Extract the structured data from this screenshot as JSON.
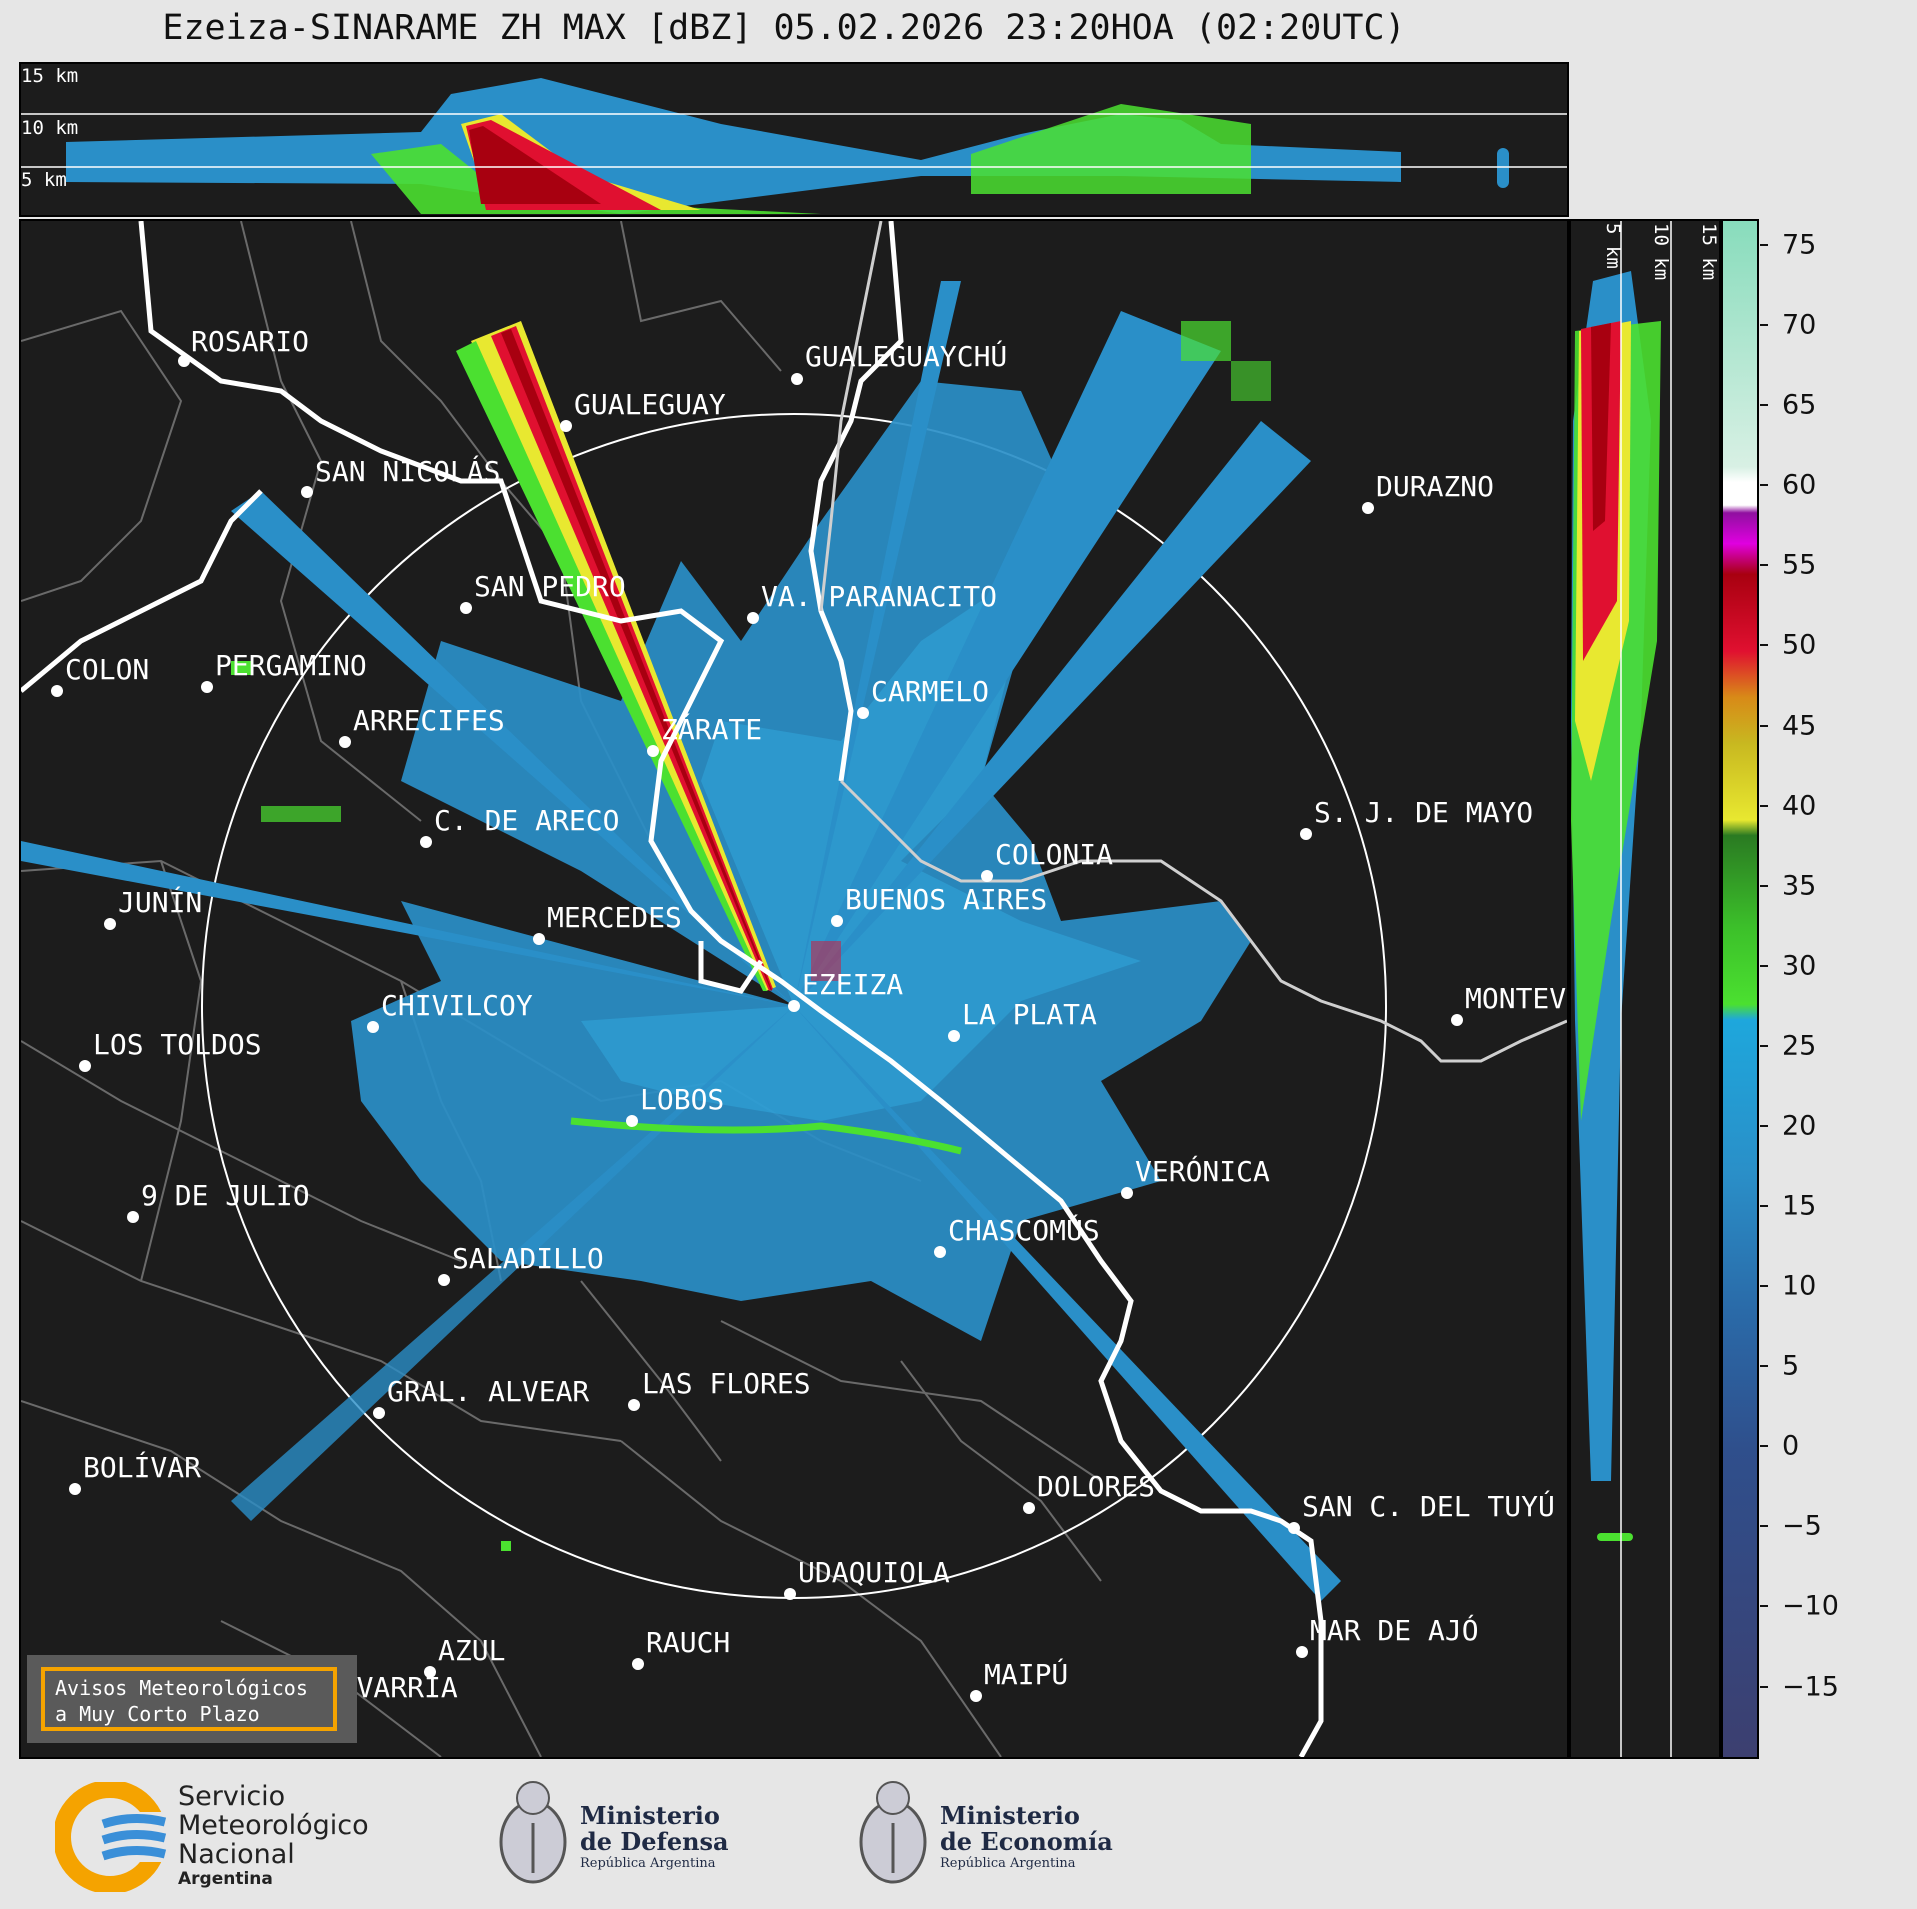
{
  "title": "Ezeiza-SINARAME ZH MAX [dBZ] 05.02.2026 23:20HOA (02:20UTC)",
  "top_cross_section": {
    "height_labels": [
      "15 km",
      "10 km",
      "5 km"
    ]
  },
  "side_cross_section": {
    "height_labels": [
      "5 km",
      "10 km",
      "15 km"
    ]
  },
  "colorbar": {
    "unit": "dBZ",
    "ticks": [
      "75",
      "70",
      "65",
      "60",
      "55",
      "50",
      "45",
      "40",
      "35",
      "30",
      "25",
      "20",
      "15",
      "10",
      "5",
      "0",
      "−5",
      "−10",
      "−15"
    ],
    "range": [
      -19.4,
      76.5
    ],
    "colors": {
      "low": "#3c3f70",
      "blue": "#2a8fc8",
      "cyan": "#1ea7dc",
      "green": "#4be030",
      "darkgreen": "#2a7a22",
      "yellow": "#e8e830",
      "orange": "#d88a18",
      "red": "#e01030",
      "darkred": "#a80010",
      "magenta": "#e000e0",
      "purple": "#9010a0",
      "white": "#ffffff",
      "mint": "#88dcbc"
    }
  },
  "cities": [
    {
      "name": "ROSARIO"
    },
    {
      "name": "GUALEGUAYCHÚ"
    },
    {
      "name": "GUALEGUAY"
    },
    {
      "name": "SAN NICOLÁS"
    },
    {
      "name": "DURAZNO"
    },
    {
      "name": "SAN PEDRO"
    },
    {
      "name": "VA. PARANACITO"
    },
    {
      "name": "COLON"
    },
    {
      "name": "PERGAMINO"
    },
    {
      "name": "CARMELO"
    },
    {
      "name": "ARRECIFES"
    },
    {
      "name": "ZÁRATE"
    },
    {
      "name": "S. J. DE MAYO"
    },
    {
      "name": "C. DE ARECO"
    },
    {
      "name": "COLONIA"
    },
    {
      "name": "JUNÍN"
    },
    {
      "name": "BUENOS AIRES"
    },
    {
      "name": "MERCEDES"
    },
    {
      "name": "EZEIZA"
    },
    {
      "name": "MONTEV"
    },
    {
      "name": "CHIVILCOY"
    },
    {
      "name": "LA PLATA"
    },
    {
      "name": "LOS TOLDOS"
    },
    {
      "name": "LOBOS"
    },
    {
      "name": "VERÓNICA"
    },
    {
      "name": "9 DE JULIO"
    },
    {
      "name": "CHASCOMÚS"
    },
    {
      "name": "SALADILLO"
    },
    {
      "name": "GRAL. ALVEAR"
    },
    {
      "name": "LAS FLORES"
    },
    {
      "name": "BOLÍVAR"
    },
    {
      "name": "DOLORES"
    },
    {
      "name": "SAN C. DEL TUYÚ"
    },
    {
      "name": "UDAQUIOLA"
    },
    {
      "name": "AZUL"
    },
    {
      "name": "RAUCH"
    },
    {
      "name": "MAR DE AJÓ"
    },
    {
      "name": "OLAVARRÍA"
    },
    {
      "name": "MAIPÚ"
    }
  ],
  "alert_box": {
    "line1": "Avisos Meteorológicos",
    "line2": "a Muy Corto Plazo"
  },
  "logos": {
    "smn": {
      "line1": "Servicio",
      "line2": "Meteorológico",
      "line3": "Nacional",
      "line4": "Argentina"
    },
    "defensa": {
      "line1": "Ministerio",
      "line2": "de Defensa",
      "line3": "República Argentina"
    },
    "economia": {
      "line1": "Ministerio",
      "line2": "de Economía",
      "line3": "República Argentina"
    }
  }
}
